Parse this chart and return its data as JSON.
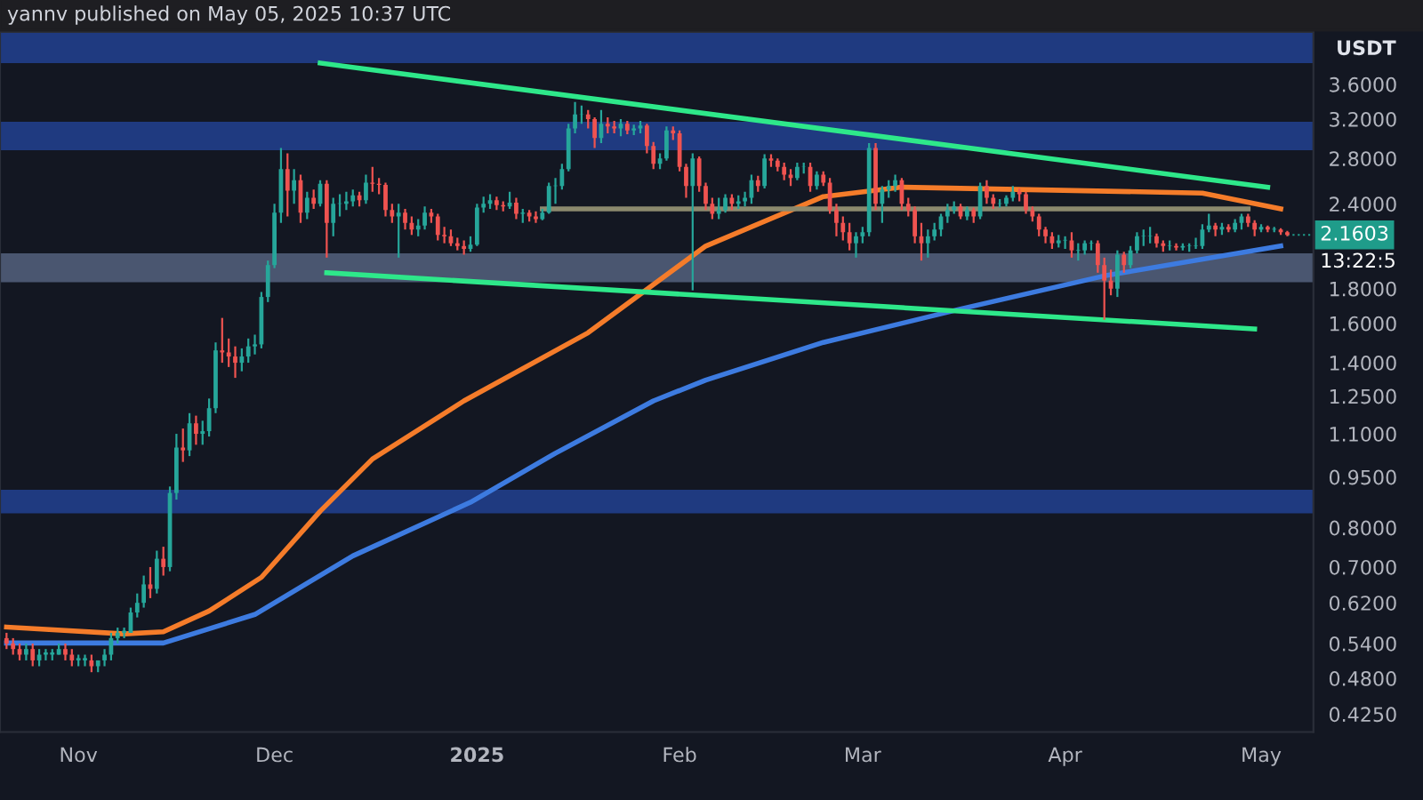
{
  "chart_data": {
    "type": "candlestick",
    "title": "yannv published on May 05, 2025 10:37 UTC",
    "ylabel": "USDT",
    "log": true,
    "ylim": [
      0.4,
      4.3
    ],
    "yticks": [
      {
        "value": 3.6,
        "label": "3.6000"
      },
      {
        "value": 3.2,
        "label": "3.2000"
      },
      {
        "value": 2.8,
        "label": "2.8000"
      },
      {
        "value": 2.4,
        "label": "2.4000"
      },
      {
        "value": 1.8,
        "label": "1.8000"
      },
      {
        "value": 1.6,
        "label": "1.6000"
      },
      {
        "value": 1.4,
        "label": "1.4000"
      },
      {
        "value": 1.25,
        "label": "1.2500"
      },
      {
        "value": 1.1,
        "label": "1.1000"
      },
      {
        "value": 0.95,
        "label": "0.9500"
      },
      {
        "value": 0.8,
        "label": "0.8000"
      },
      {
        "value": 0.7,
        "label": "0.7000"
      },
      {
        "value": 0.62,
        "label": "0.6200"
      },
      {
        "value": 0.54,
        "label": "0.5400"
      },
      {
        "value": 0.48,
        "label": "0.4800"
      },
      {
        "value": 0.425,
        "label": "0.4250"
      }
    ],
    "xlim": [
      "2024-10-20",
      "2025-05-09"
    ],
    "xticks": [
      {
        "value": "2024-11-01",
        "label": "Nov"
      },
      {
        "value": "2024-12-01",
        "label": "Dec"
      },
      {
        "value": "2025-01-01",
        "label": "2025"
      },
      {
        "value": "2025-02-01",
        "label": "Feb"
      },
      {
        "value": "2025-03-01",
        "label": "Mar"
      },
      {
        "value": "2025-04-01",
        "label": "Apr"
      },
      {
        "value": "2025-05-01",
        "label": "May"
      }
    ],
    "grid": false,
    "legend": false,
    "bands": [
      {
        "axis": "y",
        "from": 3.87,
        "to": 4.3,
        "color": "#1f3a80"
      },
      {
        "axis": "y",
        "from": 2.88,
        "to": 3.17,
        "color": "#1f3a80"
      },
      {
        "axis": "y",
        "from": 1.84,
        "to": 2.03,
        "color": "#4a5670"
      },
      {
        "axis": "y",
        "from": 0.84,
        "to": 0.91,
        "color": "#1f3a80"
      }
    ],
    "annotations": [
      {
        "text": "2.1603",
        "x": "2025-05-05",
        "y": 2.1603
      },
      "13:22:5"
    ],
    "x": [
      "2024-10-21",
      "2024-10-22",
      "2024-10-23",
      "2024-10-24",
      "2024-10-25",
      "2024-10-26",
      "2024-10-27",
      "2024-10-28",
      "2024-10-29",
      "2024-10-30",
      "2024-10-31",
      "2024-11-01",
      "2024-11-02",
      "2024-11-03",
      "2024-11-04",
      "2024-11-05",
      "2024-11-06",
      "2024-11-07",
      "2024-11-08",
      "2024-11-09",
      "2024-11-10",
      "2024-11-11",
      "2024-11-12",
      "2024-11-13",
      "2024-11-14",
      "2024-11-15",
      "2024-11-16",
      "2024-11-17",
      "2024-11-18",
      "2024-11-19",
      "2024-11-20",
      "2024-11-21",
      "2024-11-22",
      "2024-11-23",
      "2024-11-24",
      "2024-11-25",
      "2024-11-26",
      "2024-11-27",
      "2024-11-28",
      "2024-11-29",
      "2024-11-30",
      "2024-12-01",
      "2024-12-02",
      "2024-12-03",
      "2024-12-04",
      "2024-12-05",
      "2024-12-06",
      "2024-12-07",
      "2024-12-08",
      "2024-12-09",
      "2024-12-10",
      "2024-12-11",
      "2024-12-12",
      "2024-12-13",
      "2024-12-14",
      "2024-12-15",
      "2024-12-16",
      "2024-12-17",
      "2024-12-18",
      "2024-12-19",
      "2024-12-20",
      "2024-12-21",
      "2024-12-22",
      "2024-12-23",
      "2024-12-24",
      "2024-12-25",
      "2024-12-26",
      "2024-12-27",
      "2024-12-28",
      "2024-12-29",
      "2024-12-30",
      "2024-12-31",
      "2025-01-01",
      "2025-01-02",
      "2025-01-03",
      "2025-01-04",
      "2025-01-05",
      "2025-01-06",
      "2025-01-07",
      "2025-01-08",
      "2025-01-09",
      "2025-01-10",
      "2025-01-11",
      "2025-01-12",
      "2025-01-13",
      "2025-01-14",
      "2025-01-15",
      "2025-01-16",
      "2025-01-17",
      "2025-01-18",
      "2025-01-19",
      "2025-01-20",
      "2025-01-21",
      "2025-01-22",
      "2025-01-23",
      "2025-01-24",
      "2025-01-25",
      "2025-01-26",
      "2025-01-27",
      "2025-01-28",
      "2025-01-29",
      "2025-01-30",
      "2025-01-31",
      "2025-02-01",
      "2025-02-02",
      "2025-02-03",
      "2025-02-04",
      "2025-02-05",
      "2025-02-06",
      "2025-02-07",
      "2025-02-08",
      "2025-02-09",
      "2025-02-10",
      "2025-02-11",
      "2025-02-12",
      "2025-02-13",
      "2025-02-14",
      "2025-02-15",
      "2025-02-16",
      "2025-02-17",
      "2025-02-18",
      "2025-02-19",
      "2025-02-20",
      "2025-02-21",
      "2025-02-22",
      "2025-02-23",
      "2025-02-24",
      "2025-02-25",
      "2025-02-26",
      "2025-02-27",
      "2025-02-28",
      "2025-03-01",
      "2025-03-02",
      "2025-03-03",
      "2025-03-04",
      "2025-03-05",
      "2025-03-06",
      "2025-03-07",
      "2025-03-08",
      "2025-03-09",
      "2025-03-10",
      "2025-03-11",
      "2025-03-12",
      "2025-03-13",
      "2025-03-14",
      "2025-03-15",
      "2025-03-16",
      "2025-03-17",
      "2025-03-18",
      "2025-03-19",
      "2025-03-20",
      "2025-03-21",
      "2025-03-22",
      "2025-03-23",
      "2025-03-24",
      "2025-03-25",
      "2025-03-26",
      "2025-03-27",
      "2025-03-28",
      "2025-03-29",
      "2025-03-30",
      "2025-03-31",
      "2025-04-01",
      "2025-04-02",
      "2025-04-03",
      "2025-04-04",
      "2025-04-05",
      "2025-04-06",
      "2025-04-07",
      "2025-04-08",
      "2025-04-09",
      "2025-04-10",
      "2025-04-11",
      "2025-04-12",
      "2025-04-13",
      "2025-04-14",
      "2025-04-15",
      "2025-04-16",
      "2025-04-17",
      "2025-04-18",
      "2025-04-19",
      "2025-04-20",
      "2025-04-21",
      "2025-04-22",
      "2025-04-23",
      "2025-04-24",
      "2025-04-25",
      "2025-04-26",
      "2025-04-27",
      "2025-04-28",
      "2025-04-29",
      "2025-04-30",
      "2025-05-01",
      "2025-05-02",
      "2025-05-03",
      "2025-05-04",
      "2025-05-05"
    ],
    "ohlc": [
      [
        0.55,
        0.56,
        0.53,
        0.54
      ],
      [
        0.54,
        0.55,
        0.52,
        0.53
      ],
      [
        0.53,
        0.54,
        0.51,
        0.52
      ],
      [
        0.52,
        0.54,
        0.51,
        0.53
      ],
      [
        0.53,
        0.54,
        0.5,
        0.51
      ],
      [
        0.51,
        0.53,
        0.5,
        0.52
      ],
      [
        0.52,
        0.53,
        0.51,
        0.52
      ],
      [
        0.52,
        0.53,
        0.51,
        0.52
      ],
      [
        0.52,
        0.54,
        0.52,
        0.53
      ],
      [
        0.53,
        0.54,
        0.51,
        0.52
      ],
      [
        0.52,
        0.53,
        0.5,
        0.51
      ],
      [
        0.51,
        0.52,
        0.5,
        0.51
      ],
      [
        0.51,
        0.52,
        0.5,
        0.51
      ],
      [
        0.51,
        0.52,
        0.49,
        0.5
      ],
      [
        0.5,
        0.51,
        0.49,
        0.51
      ],
      [
        0.51,
        0.53,
        0.5,
        0.52
      ],
      [
        0.52,
        0.56,
        0.51,
        0.55
      ],
      [
        0.55,
        0.57,
        0.54,
        0.56
      ],
      [
        0.56,
        0.57,
        0.55,
        0.56
      ],
      [
        0.56,
        0.61,
        0.56,
        0.6
      ],
      [
        0.6,
        0.64,
        0.59,
        0.62
      ],
      [
        0.62,
        0.68,
        0.61,
        0.66
      ],
      [
        0.66,
        0.7,
        0.63,
        0.65
      ],
      [
        0.65,
        0.74,
        0.64,
        0.72
      ],
      [
        0.72,
        0.75,
        0.68,
        0.7
      ],
      [
        0.7,
        0.92,
        0.69,
        0.9
      ],
      [
        0.9,
        1.1,
        0.88,
        1.05
      ],
      [
        1.05,
        1.12,
        1.0,
        1.04
      ],
      [
        1.04,
        1.18,
        1.02,
        1.14
      ],
      [
        1.14,
        1.17,
        1.06,
        1.1
      ],
      [
        1.1,
        1.15,
        1.06,
        1.11
      ],
      [
        1.11,
        1.24,
        1.09,
        1.2
      ],
      [
        1.2,
        1.5,
        1.18,
        1.46
      ],
      [
        1.46,
        1.63,
        1.4,
        1.45
      ],
      [
        1.45,
        1.52,
        1.38,
        1.43
      ],
      [
        1.43,
        1.48,
        1.33,
        1.4
      ],
      [
        1.4,
        1.47,
        1.36,
        1.43
      ],
      [
        1.43,
        1.52,
        1.4,
        1.48
      ],
      [
        1.48,
        1.54,
        1.44,
        1.49
      ],
      [
        1.49,
        1.78,
        1.47,
        1.75
      ],
      [
        1.75,
        1.98,
        1.72,
        1.95
      ],
      [
        1.95,
        2.4,
        1.93,
        2.33
      ],
      [
        2.33,
        2.9,
        2.25,
        2.7
      ],
      [
        2.7,
        2.85,
        2.3,
        2.51
      ],
      [
        2.51,
        2.7,
        2.4,
        2.6
      ],
      [
        2.6,
        2.65,
        2.25,
        2.33
      ],
      [
        2.33,
        2.5,
        2.28,
        2.45
      ],
      [
        2.45,
        2.52,
        2.36,
        2.4
      ],
      [
        2.4,
        2.6,
        2.38,
        2.57
      ],
      [
        2.57,
        2.6,
        2.0,
        2.25
      ],
      [
        2.25,
        2.45,
        2.15,
        2.4
      ],
      [
        2.4,
        2.48,
        2.3,
        2.4
      ],
      [
        2.4,
        2.5,
        2.35,
        2.42
      ],
      [
        2.42,
        2.52,
        2.38,
        2.47
      ],
      [
        2.47,
        2.5,
        2.38,
        2.43
      ],
      [
        2.43,
        2.65,
        2.4,
        2.58
      ],
      [
        2.58,
        2.72,
        2.5,
        2.57
      ],
      [
        2.57,
        2.62,
        2.48,
        2.56
      ],
      [
        2.56,
        2.58,
        2.3,
        2.35
      ],
      [
        2.35,
        2.4,
        2.25,
        2.3
      ],
      [
        2.3,
        2.4,
        2.0,
        2.33
      ],
      [
        2.33,
        2.36,
        2.2,
        2.25
      ],
      [
        2.25,
        2.3,
        2.16,
        2.2
      ],
      [
        2.2,
        2.28,
        2.15,
        2.23
      ],
      [
        2.23,
        2.38,
        2.2,
        2.33
      ],
      [
        2.33,
        2.36,
        2.25,
        2.3
      ],
      [
        2.3,
        2.32,
        2.12,
        2.16
      ],
      [
        2.16,
        2.22,
        2.1,
        2.15
      ],
      [
        2.15,
        2.2,
        2.08,
        2.1
      ],
      [
        2.1,
        2.14,
        2.05,
        2.08
      ],
      [
        2.08,
        2.12,
        2.02,
        2.06
      ],
      [
        2.06,
        2.15,
        2.04,
        2.09
      ],
      [
        2.09,
        2.4,
        2.08,
        2.37
      ],
      [
        2.37,
        2.46,
        2.33,
        2.4
      ],
      [
        2.4,
        2.48,
        2.36,
        2.43
      ],
      [
        2.43,
        2.46,
        2.35,
        2.39
      ],
      [
        2.39,
        2.42,
        2.34,
        2.38
      ],
      [
        2.38,
        2.5,
        2.36,
        2.41
      ],
      [
        2.41,
        2.45,
        2.28,
        2.32
      ],
      [
        2.32,
        2.36,
        2.25,
        2.33
      ],
      [
        2.33,
        2.35,
        2.26,
        2.3
      ],
      [
        2.3,
        2.34,
        2.25,
        2.28
      ],
      [
        2.28,
        2.36,
        2.27,
        2.33
      ],
      [
        2.33,
        2.58,
        2.32,
        2.55
      ],
      [
        2.55,
        2.62,
        2.4,
        2.55
      ],
      [
        2.55,
        2.75,
        2.52,
        2.7
      ],
      [
        2.7,
        3.15,
        2.68,
        3.1
      ],
      [
        3.1,
        3.39,
        3.05,
        3.25
      ],
      [
        3.25,
        3.35,
        3.15,
        3.25
      ],
      [
        3.25,
        3.3,
        3.1,
        3.2
      ],
      [
        3.2,
        3.22,
        2.9,
        3.0
      ],
      [
        3.0,
        3.3,
        2.95,
        3.15
      ],
      [
        3.15,
        3.22,
        3.05,
        3.12
      ],
      [
        3.12,
        3.18,
        3.05,
        3.1
      ],
      [
        3.1,
        3.2,
        3.02,
        3.15
      ],
      [
        3.15,
        3.18,
        3.04,
        3.08
      ],
      [
        3.08,
        3.14,
        3.03,
        3.1
      ],
      [
        3.1,
        3.18,
        3.05,
        3.13
      ],
      [
        3.13,
        3.15,
        2.85,
        2.92
      ],
      [
        2.92,
        2.96,
        2.7,
        2.75
      ],
      [
        2.75,
        2.85,
        2.7,
        2.8
      ],
      [
        2.8,
        3.12,
        2.78,
        3.08
      ],
      [
        3.08,
        3.12,
        2.98,
        3.05
      ],
      [
        3.05,
        3.08,
        2.68,
        2.72
      ],
      [
        2.72,
        2.75,
        2.45,
        2.55
      ],
      [
        2.55,
        2.85,
        1.79,
        2.8
      ],
      [
        2.8,
        2.82,
        2.5,
        2.55
      ],
      [
        2.55,
        2.58,
        2.35,
        2.4
      ],
      [
        2.4,
        2.45,
        2.28,
        2.32
      ],
      [
        2.32,
        2.45,
        2.28,
        2.35
      ],
      [
        2.35,
        2.48,
        2.33,
        2.45
      ],
      [
        2.45,
        2.48,
        2.35,
        2.4
      ],
      [
        2.4,
        2.47,
        2.36,
        2.42
      ],
      [
        2.42,
        2.5,
        2.38,
        2.45
      ],
      [
        2.45,
        2.65,
        2.4,
        2.6
      ],
      [
        2.6,
        2.64,
        2.5,
        2.55
      ],
      [
        2.55,
        2.84,
        2.53,
        2.8
      ],
      [
        2.8,
        2.84,
        2.72,
        2.78
      ],
      [
        2.78,
        2.8,
        2.68,
        2.72
      ],
      [
        2.72,
        2.76,
        2.6,
        2.65
      ],
      [
        2.65,
        2.7,
        2.55,
        2.62
      ],
      [
        2.62,
        2.76,
        2.6,
        2.72
      ],
      [
        2.72,
        2.76,
        2.66,
        2.72
      ],
      [
        2.72,
        2.76,
        2.5,
        2.55
      ],
      [
        2.55,
        2.68,
        2.52,
        2.65
      ],
      [
        2.65,
        2.68,
        2.55,
        2.58
      ],
      [
        2.58,
        2.62,
        2.32,
        2.35
      ],
      [
        2.35,
        2.4,
        2.15,
        2.25
      ],
      [
        2.25,
        2.3,
        2.12,
        2.18
      ],
      [
        2.18,
        2.25,
        2.05,
        2.1
      ],
      [
        2.1,
        2.18,
        2.0,
        2.15
      ],
      [
        2.15,
        2.22,
        2.1,
        2.18
      ],
      [
        2.18,
        2.95,
        2.15,
        2.9
      ],
      [
        2.9,
        2.95,
        2.35,
        2.4
      ],
      [
        2.4,
        2.55,
        2.25,
        2.52
      ],
      [
        2.52,
        2.6,
        2.45,
        2.55
      ],
      [
        2.55,
        2.65,
        2.5,
        2.6
      ],
      [
        2.6,
        2.62,
        2.35,
        2.4
      ],
      [
        2.4,
        2.45,
        2.3,
        2.35
      ],
      [
        2.35,
        2.38,
        2.1,
        2.15
      ],
      [
        2.15,
        2.25,
        1.98,
        2.1
      ],
      [
        2.1,
        2.2,
        2.0,
        2.15
      ],
      [
        2.15,
        2.25,
        2.12,
        2.2
      ],
      [
        2.2,
        2.32,
        2.15,
        2.3
      ],
      [
        2.3,
        2.4,
        2.25,
        2.35
      ],
      [
        2.35,
        2.42,
        2.32,
        2.38
      ],
      [
        2.38,
        2.4,
        2.28,
        2.3
      ],
      [
        2.3,
        2.38,
        2.27,
        2.35
      ],
      [
        2.35,
        2.37,
        2.25,
        2.3
      ],
      [
        2.3,
        2.58,
        2.28,
        2.55
      ],
      [
        2.55,
        2.6,
        2.4,
        2.45
      ],
      [
        2.45,
        2.48,
        2.36,
        2.4
      ],
      [
        2.4,
        2.44,
        2.37,
        2.4
      ],
      [
        2.4,
        2.47,
        2.38,
        2.45
      ],
      [
        2.45,
        2.55,
        2.42,
        2.5
      ],
      [
        2.5,
        2.53,
        2.42,
        2.48
      ],
      [
        2.48,
        2.5,
        2.32,
        2.35
      ],
      [
        2.35,
        2.38,
        2.26,
        2.3
      ],
      [
        2.3,
        2.32,
        2.15,
        2.2
      ],
      [
        2.2,
        2.22,
        2.1,
        2.15
      ],
      [
        2.15,
        2.18,
        2.06,
        2.1
      ],
      [
        2.1,
        2.16,
        2.07,
        2.12
      ],
      [
        2.12,
        2.15,
        2.06,
        2.12
      ],
      [
        2.12,
        2.18,
        2.0,
        2.05
      ],
      [
        2.05,
        2.1,
        1.98,
        2.05
      ],
      [
        2.05,
        2.12,
        2.02,
        2.1
      ],
      [
        2.1,
        2.12,
        2.05,
        2.1
      ],
      [
        2.1,
        2.12,
        1.9,
        1.95
      ],
      [
        1.95,
        2.0,
        1.62,
        1.85
      ],
      [
        1.85,
        1.92,
        1.76,
        1.8
      ],
      [
        1.8,
        2.05,
        1.75,
        2.02
      ],
      [
        2.02,
        2.04,
        1.9,
        1.95
      ],
      [
        1.95,
        2.08,
        1.93,
        2.05
      ],
      [
        2.05,
        2.18,
        2.03,
        2.15
      ],
      [
        2.15,
        2.2,
        2.08,
        2.15
      ],
      [
        2.15,
        2.22,
        2.1,
        2.15
      ],
      [
        2.15,
        2.17,
        2.07,
        2.1
      ],
      [
        2.1,
        2.12,
        2.04,
        2.08
      ],
      [
        2.08,
        2.12,
        2.05,
        2.08
      ],
      [
        2.08,
        2.1,
        2.05,
        2.07
      ],
      [
        2.07,
        2.1,
        2.05,
        2.08
      ],
      [
        2.08,
        2.1,
        2.04,
        2.08
      ],
      [
        2.08,
        2.14,
        2.06,
        2.08
      ],
      [
        2.08,
        2.24,
        2.06,
        2.2
      ],
      [
        2.2,
        2.32,
        2.18,
        2.23
      ],
      [
        2.23,
        2.25,
        2.15,
        2.2
      ],
      [
        2.2,
        2.25,
        2.16,
        2.22
      ],
      [
        2.22,
        2.24,
        2.18,
        2.2
      ],
      [
        2.2,
        2.28,
        2.18,
        2.25
      ],
      [
        2.25,
        2.32,
        2.2,
        2.3
      ],
      [
        2.3,
        2.32,
        2.22,
        2.25
      ],
      [
        2.25,
        2.27,
        2.15,
        2.2
      ],
      [
        2.2,
        2.24,
        2.18,
        2.22
      ],
      [
        2.22,
        2.23,
        2.18,
        2.2
      ],
      [
        2.2,
        2.22,
        2.18,
        2.2
      ],
      [
        2.2,
        2.21,
        2.16,
        2.18
      ],
      [
        2.18,
        2.19,
        2.15,
        2.1603
      ]
    ],
    "series": [
      {
        "type": "line",
        "color": "#f57c2a",
        "x": [
          "2024-10-21",
          "2024-11-08",
          "2024-11-14",
          "2024-11-21",
          "2024-11-29",
          "2024-12-08",
          "2024-12-16",
          "2024-12-30",
          "2025-01-18",
          "2025-02-05",
          "2025-02-23",
          "2025-03-07",
          "2025-04-22",
          "2025-05-04"
        ],
        "values": [
          0.571,
          0.558,
          0.562,
          0.603,
          0.676,
          0.846,
          1.01,
          1.23,
          1.55,
          2.08,
          2.46,
          2.54,
          2.49,
          2.36
        ]
      },
      {
        "type": "line",
        "color": "#3d7be0",
        "x": [
          "2024-10-21",
          "2024-11-14",
          "2024-11-28",
          "2024-12-13",
          "2024-12-31",
          "2025-01-13",
          "2025-01-28",
          "2025-02-05",
          "2025-02-23",
          "2025-03-16",
          "2025-04-07",
          "2025-05-04"
        ],
        "values": [
          0.541,
          0.541,
          0.596,
          0.727,
          0.872,
          1.03,
          1.23,
          1.32,
          1.5,
          1.68,
          1.88,
          2.08
        ]
      },
      {
        "type": "line",
        "color": "#2ee88a",
        "x": [
          "2024-12-08",
          "2025-05-02"
        ],
        "values": [
          3.87,
          2.54
        ]
      },
      {
        "type": "line",
        "color": "#2ee88a",
        "x": [
          "2024-12-09",
          "2025-04-30"
        ],
        "values": [
          1.9,
          1.57
        ]
      },
      {
        "type": "line",
        "color": "#8c8a6e",
        "x": [
          "2025-01-11",
          "2025-04-29"
        ],
        "values": [
          2.36,
          2.36
        ]
      }
    ]
  }
}
